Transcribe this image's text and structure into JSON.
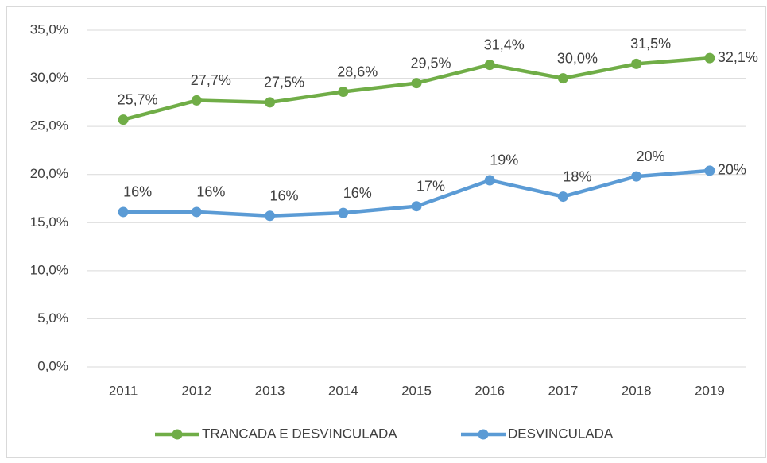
{
  "chart_data": {
    "type": "line",
    "categories": [
      "2011",
      "2012",
      "2013",
      "2014",
      "2015",
      "2016",
      "2017",
      "2018",
      "2019"
    ],
    "series": [
      {
        "name": "TRANCADA E DESVINCULADA",
        "color": "#70ad47",
        "values": [
          25.7,
          27.7,
          27.5,
          28.6,
          29.5,
          31.4,
          30.0,
          31.5,
          32.1
        ],
        "value_labels": [
          "25,7%",
          "27,7%",
          "27,5%",
          "28,6%",
          "29,5%",
          "31,4%",
          "30,0%",
          "31,5%",
          "32,1%"
        ]
      },
      {
        "name": "DESVINCULADA",
        "color": "#5b9bd5",
        "values": [
          16.1,
          16.1,
          15.7,
          16.0,
          16.7,
          19.4,
          17.7,
          19.8,
          20.4
        ],
        "value_labels": [
          "16%",
          "16%",
          "16%",
          "16%",
          "17%",
          "19%",
          "18%",
          "20%",
          "20%"
        ]
      }
    ],
    "ylim": [
      0,
      35
    ],
    "yticks": [
      {
        "value": 0,
        "label": "0,0%"
      },
      {
        "value": 5,
        "label": "5,0%"
      },
      {
        "value": 10,
        "label": "10,0%"
      },
      {
        "value": 15,
        "label": "15,0%"
      },
      {
        "value": 20,
        "label": "20,0%"
      },
      {
        "value": 25,
        "label": "25,0%"
      },
      {
        "value": 30,
        "label": "30,0%"
      },
      {
        "value": 35,
        "label": "35,0%"
      }
    ],
    "grid": true,
    "legend": "bottom"
  }
}
